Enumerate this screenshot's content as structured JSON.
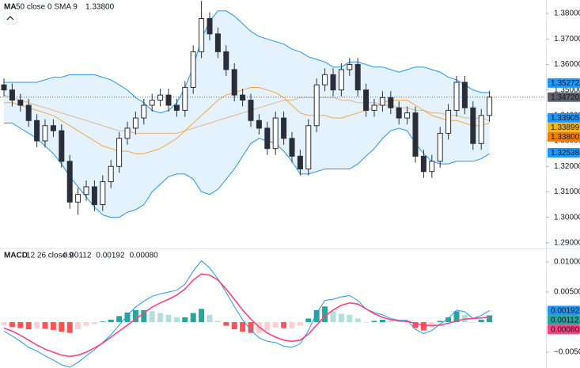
{
  "chart_data": {
    "type": "candlestick",
    "price": {
      "open": [
        1.352,
        1.35,
        1.346,
        1.344,
        1.338,
        1.33,
        1.336,
        1.334,
        1.322,
        1.306,
        1.309,
        1.312,
        1.305,
        1.314,
        1.32,
        1.331,
        1.335,
        1.339,
        1.344,
        1.346,
        1.348,
        1.344,
        1.342,
        1.351,
        1.365,
        1.378,
        1.372,
        1.365,
        1.358,
        1.348,
        1.346,
        1.338,
        1.335,
        1.327,
        1.339,
        1.331,
        1.324,
        1.319,
        1.336,
        1.352,
        1.356,
        1.35,
        1.358,
        1.36,
        1.35,
        1.342,
        1.344,
        1.347,
        1.343,
        1.339,
        1.341,
        1.324,
        1.318,
        1.322,
        1.333,
        1.342,
        1.353,
        1.343,
        1.329,
        1.34
      ],
      "high": [
        1.3545,
        1.3525,
        1.3485,
        1.3465,
        1.3405,
        1.3385,
        1.3385,
        1.3365,
        1.3245,
        1.3115,
        1.3145,
        1.3145,
        1.3165,
        1.3225,
        1.3335,
        1.3375,
        1.3415,
        1.3465,
        1.3485,
        1.3505,
        1.3505,
        1.3465,
        1.3535,
        1.3675,
        1.385,
        1.3805,
        1.3745,
        1.3675,
        1.3605,
        1.3505,
        1.3485,
        1.3405,
        1.3375,
        1.3415,
        1.3415,
        1.3335,
        1.3265,
        1.3385,
        1.3545,
        1.3585,
        1.3585,
        1.3605,
        1.3625,
        1.3625,
        1.3525,
        1.3465,
        1.3495,
        1.3495,
        1.3455,
        1.3435,
        1.3435,
        1.3265,
        1.3245,
        1.3355,
        1.3445,
        1.3555,
        1.3555,
        1.3455,
        1.3425,
        1.3497
      ],
      "low": [
        1.3475,
        1.3435,
        1.3415,
        1.3355,
        1.3275,
        1.3275,
        1.3315,
        1.3195,
        1.3035,
        1.301,
        1.3065,
        1.3025,
        1.3025,
        1.3115,
        1.3175,
        1.3285,
        1.3325,
        1.3365,
        1.3415,
        1.3435,
        1.3415,
        1.3395,
        1.3395,
        1.3485,
        1.3625,
        1.3695,
        1.3625,
        1.3555,
        1.3455,
        1.3435,
        1.3355,
        1.3325,
        1.3245,
        1.3245,
        1.3285,
        1.3215,
        1.3165,
        1.3165,
        1.3335,
        1.3495,
        1.3475,
        1.3475,
        1.3555,
        1.3475,
        1.3395,
        1.3395,
        1.3415,
        1.3405,
        1.3365,
        1.3365,
        1.3215,
        1.3155,
        1.3155,
        1.3195,
        1.3305,
        1.3395,
        1.3405,
        1.3265,
        1.3265,
        1.3375
      ],
      "close": [
        1.35,
        1.346,
        1.344,
        1.338,
        1.33,
        1.336,
        1.334,
        1.322,
        1.306,
        1.309,
        1.312,
        1.305,
        1.314,
        1.32,
        1.331,
        1.335,
        1.339,
        1.344,
        1.346,
        1.348,
        1.344,
        1.342,
        1.351,
        1.365,
        1.378,
        1.372,
        1.365,
        1.358,
        1.348,
        1.346,
        1.338,
        1.335,
        1.327,
        1.339,
        1.331,
        1.324,
        1.319,
        1.336,
        1.352,
        1.356,
        1.35,
        1.358,
        1.36,
        1.35,
        1.342,
        1.344,
        1.347,
        1.343,
        1.339,
        1.341,
        1.324,
        1.318,
        1.322,
        1.333,
        1.342,
        1.353,
        1.343,
        1.329,
        1.34,
        1.3472
      ],
      "up_color": "#ffffff",
      "down_color": "#2a2e39",
      "border_color": "#2a2e39"
    },
    "bollinger": {
      "upper": [
        1.353,
        1.353,
        1.353,
        1.353,
        1.353,
        1.354,
        1.355,
        1.355,
        1.356,
        1.356,
        1.356,
        1.356,
        1.355,
        1.354,
        1.352,
        1.35,
        1.347,
        1.345,
        1.342,
        1.341,
        1.342,
        1.345,
        1.351,
        1.359,
        1.37,
        1.377,
        1.381,
        1.381,
        1.379,
        1.376,
        1.373,
        1.371,
        1.37,
        1.369,
        1.368,
        1.366,
        1.365,
        1.363,
        1.362,
        1.361,
        1.359,
        1.359,
        1.361,
        1.361,
        1.36,
        1.359,
        1.359,
        1.358,
        1.357,
        1.358,
        1.359,
        1.359,
        1.358,
        1.357,
        1.355,
        1.354,
        1.352,
        1.35,
        1.349,
        1.349
      ],
      "basis": [
        1.345,
        1.345,
        1.344,
        1.343,
        1.342,
        1.341,
        1.34,
        1.338,
        1.336,
        1.334,
        1.332,
        1.33,
        1.328,
        1.327,
        1.326,
        1.326,
        1.325,
        1.325,
        1.326,
        1.327,
        1.329,
        1.331,
        1.334,
        1.337,
        1.34,
        1.343,
        1.346,
        1.348,
        1.349,
        1.35,
        1.351,
        1.351,
        1.35,
        1.349,
        1.347,
        1.344,
        1.341,
        1.34,
        1.34,
        1.34,
        1.339,
        1.339,
        1.34,
        1.341,
        1.342,
        1.343,
        1.345,
        1.346,
        1.346,
        1.346,
        1.344,
        1.342,
        1.34,
        1.339,
        1.338,
        1.338,
        1.337,
        1.336,
        1.336,
        1.337
      ],
      "lower": [
        1.337,
        1.337,
        1.335,
        1.333,
        1.331,
        1.328,
        1.325,
        1.321,
        1.316,
        1.312,
        1.308,
        1.304,
        1.301,
        1.3,
        1.3,
        1.302,
        1.303,
        1.305,
        1.31,
        1.313,
        1.316,
        1.317,
        1.317,
        1.315,
        1.31,
        1.309,
        1.311,
        1.315,
        1.319,
        1.324,
        1.329,
        1.331,
        1.33,
        1.329,
        1.326,
        1.322,
        1.317,
        1.317,
        1.318,
        1.319,
        1.319,
        1.319,
        1.319,
        1.321,
        1.324,
        1.327,
        1.331,
        1.334,
        1.335,
        1.334,
        1.329,
        1.325,
        1.322,
        1.321,
        1.321,
        1.322,
        1.322,
        1.322,
        1.323,
        1.325
      ],
      "line_color": "#2196f3",
      "basis_color": "#f7a63a",
      "fill_color": "#2196f3"
    },
    "ma": {
      "values": [
        1.348,
        1.347,
        1.346,
        1.345,
        1.344,
        1.343,
        1.342,
        1.341,
        1.34,
        1.339,
        1.338,
        1.337,
        1.336,
        1.335,
        1.334,
        1.334,
        1.333,
        1.333,
        1.333,
        1.333,
        1.333,
        1.333,
        1.334,
        1.335,
        1.336,
        1.337,
        1.338,
        1.339,
        1.34,
        1.341,
        1.342,
        1.343,
        1.344,
        1.345,
        1.346,
        1.346,
        1.347,
        1.347,
        1.347,
        1.347,
        1.347,
        1.346,
        1.346,
        1.345,
        1.345,
        1.345,
        1.344,
        1.344,
        1.343,
        1.343,
        1.342,
        1.342,
        1.341,
        1.341,
        1.34,
        1.34,
        1.339,
        1.339,
        1.339,
        1.338
      ],
      "color": "#e8a25c"
    },
    "legend": {
      "name": "MA",
      "params": "50 close 0 SMA 9",
      "value": {
        "value": 1.338,
        "label": "1.33800"
      },
      "value_color": "#e08f2d"
    },
    "ylim": [
      1.2881,
      1.3853
    ],
    "yticks": [
      {
        "value": 1.29,
        "label": "1.29000"
      },
      {
        "value": 1.3,
        "label": "1.30000"
      },
      {
        "value": 1.31,
        "label": "1.31000"
      },
      {
        "value": 1.32,
        "label": "1.32000"
      },
      {
        "value": 1.33,
        "label": "1.33000"
      },
      {
        "value": 1.34,
        "label": "1.34000"
      },
      {
        "value": 1.35,
        "label": "1.35000"
      },
      {
        "value": 1.36,
        "label": "1.36000"
      },
      {
        "value": 1.37,
        "label": "1.37000"
      },
      {
        "value": 1.38,
        "label": "1.38000"
      }
    ],
    "price_labels": [
      {
        "value": 1.35272,
        "label": "1.35272",
        "color": "#2196f3",
        "text_color": "#ffffff"
      },
      {
        "value": 1.3472,
        "label": "1.34720",
        "color": "#5d606b",
        "text_color": "#ffffff"
      },
      {
        "value": 1.33905,
        "label": "1.33905",
        "color": "#2196f3",
        "text_color": "#ffffff"
      },
      {
        "value": 1.33899,
        "label": "1.33899",
        "color": "#f2b61c",
        "text_color": "#131722"
      },
      {
        "value": 1.338,
        "label": "1.33800",
        "color": "#ef7d10",
        "text_color": "#ffffff"
      },
      {
        "value": 1.32538,
        "label": "1.32538",
        "color": "#2196f3",
        "text_color": "#ffffff"
      }
    ],
    "last_price": 1.3472,
    "macd": {
      "title": "MACD",
      "params": "12 26 close 9",
      "legend_values": [
        {
          "value": 0.00112,
          "label": "0.00112",
          "color": "#26a69a"
        },
        {
          "value": 0.00192,
          "label": "0.00192",
          "color": "#2196f3"
        },
        {
          "value": 0.0008,
          "label": "0.00080",
          "color": "#ff4081"
        }
      ],
      "histogram": [
        -0.0005,
        -0.0008,
        -0.001,
        -0.0012,
        -0.001,
        -0.0011,
        -0.0013,
        -0.0016,
        -0.0018,
        -0.0012,
        -0.0006,
        -0.0003,
        0.0001,
        0.0004,
        0.001,
        0.0016,
        0.002,
        0.002,
        0.0018,
        0.0015,
        0.0012,
        0.0008,
        0.0008,
        0.0015,
        0.0022,
        0.0012,
        0.0002,
        -0.0006,
        -0.0012,
        -0.0016,
        -0.0018,
        -0.0018,
        -0.0014,
        -0.0009,
        -0.001,
        -0.001,
        -0.0006,
        0.0006,
        0.002,
        0.0026,
        0.0018,
        0.0014,
        0.0012,
        0.0006,
        0.0,
        0.0002,
        0.0004,
        0.0002,
        0.0001,
        0.0002,
        -0.001,
        -0.0014,
        -0.0008,
        0.0002,
        0.0008,
        0.0018,
        0.0012,
        0.0,
        0.0004,
        0.00112
      ],
      "macd": [
        -0.0015,
        -0.0023,
        -0.0032,
        -0.0042,
        -0.0048,
        -0.0056,
        -0.0063,
        -0.0071,
        -0.0075,
        -0.0067,
        -0.0056,
        -0.0046,
        -0.0034,
        -0.0021,
        -0.0005,
        0.0011,
        0.0025,
        0.0035,
        0.0043,
        0.0047,
        0.005,
        0.0053,
        0.0063,
        0.0085,
        0.0102,
        0.009,
        0.0072,
        0.0049,
        0.0026,
        0.0004,
        -0.0013,
        -0.0026,
        -0.0032,
        -0.0034,
        -0.004,
        -0.0042,
        -0.0036,
        -0.0014,
        0.0015,
        0.0036,
        0.0038,
        0.0042,
        0.0044,
        0.0036,
        0.0022,
        0.0016,
        0.0012,
        0.0006,
        0.0003,
        0.0003,
        -0.0012,
        -0.0019,
        -0.0014,
        -0.0003,
        0.0006,
        0.002,
        0.0017,
        0.0006,
        0.0011,
        0.00192
      ],
      "signal": [
        -0.001,
        -0.0015,
        -0.0022,
        -0.003,
        -0.0038,
        -0.0045,
        -0.005,
        -0.0055,
        -0.0057,
        -0.0055,
        -0.005,
        -0.0043,
        -0.0035,
        -0.0025,
        -0.0015,
        -0.0005,
        0.0005,
        0.0015,
        0.0025,
        0.0032,
        0.0038,
        0.0045,
        0.0055,
        0.007,
        0.008,
        0.0078,
        0.007,
        0.0055,
        0.0038,
        0.002,
        0.0005,
        -0.0008,
        -0.0018,
        -0.0025,
        -0.003,
        -0.0032,
        -0.003,
        -0.002,
        -0.0005,
        0.001,
        0.002,
        0.0028,
        0.0032,
        0.003,
        0.0022,
        0.0014,
        0.0008,
        0.0004,
        0.0002,
        0.0001,
        -0.0002,
        -0.0005,
        -0.0006,
        -0.0005,
        -0.0002,
        0.0002,
        0.0005,
        0.0006,
        0.0007,
        0.0008
      ],
      "macd_color": "#2196f3",
      "signal_color": "#ff4081",
      "hist_colors": [
        "#26a69a",
        "#b2dfdb",
        "#ff5252",
        "#ffcdd2"
      ],
      "ylim": [
        -0.00763,
        0.01197
      ],
      "yticks": [
        {
          "value": -0.005,
          "label": "−0.00500"
        },
        {
          "value": 0.005,
          "label": "0.00500"
        },
        {
          "value": 0.01,
          "label": "0.01000"
        }
      ],
      "price_labels": [
        {
          "value": 0.00192,
          "label": "0.00192",
          "color": "#2196f3",
          "text_color": "#ffffff"
        },
        {
          "value": 0.00112,
          "label": "0.00112",
          "color": "#26a69a",
          "text_color": "#ffffff"
        },
        {
          "value": 0.0008,
          "label": "0.00080",
          "color": "#ff4081",
          "text_color": "#ffffff"
        }
      ]
    }
  }
}
